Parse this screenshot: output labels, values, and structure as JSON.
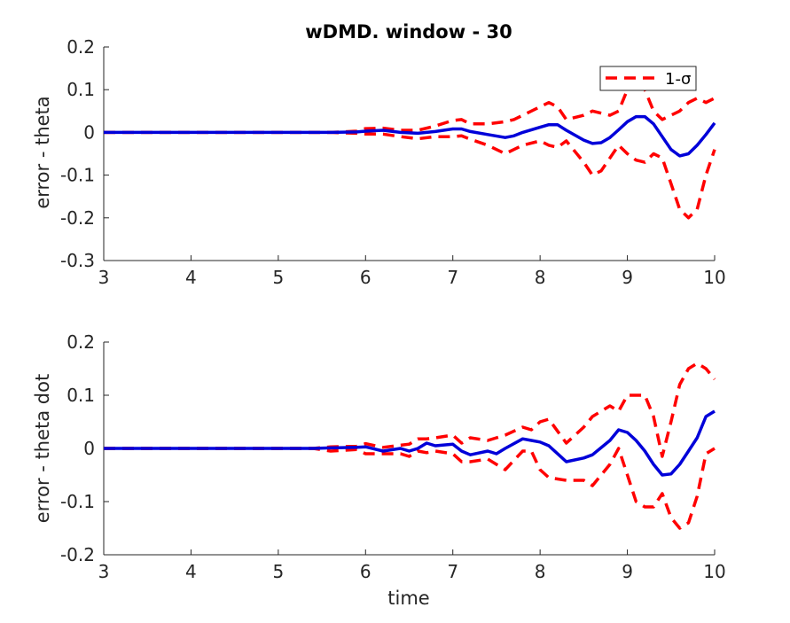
{
  "title": "wDMD. window - 30",
  "legend": {
    "label": "1-σ",
    "position": "top-right"
  },
  "colors": {
    "mean": "#0000d9",
    "sigma": "#ff0000",
    "axis": "#262626"
  },
  "chart_data": [
    {
      "type": "line",
      "title": "wDMD. window - 30",
      "xlabel": "",
      "ylabel": "error - theta",
      "xlim": [
        3,
        10
      ],
      "ylim": [
        -0.3,
        0.2
      ],
      "xticks": [
        3,
        4,
        5,
        6,
        7,
        8,
        9,
        10
      ],
      "yticks": [
        -0.3,
        -0.2,
        -0.1,
        0,
        0.1,
        0.2
      ],
      "ytick_labels": [
        "-0.3",
        "-0.2",
        "-0.1",
        "0",
        "0.1",
        "0.2"
      ],
      "grid": false,
      "legend": "top-right",
      "x": [
        3.0,
        4.0,
        5.0,
        5.4,
        5.6,
        5.9,
        6.0,
        6.2,
        6.4,
        6.6,
        6.8,
        7.0,
        7.1,
        7.2,
        7.4,
        7.6,
        7.7,
        7.8,
        8.0,
        8.1,
        8.2,
        8.3,
        8.5,
        8.6,
        8.7,
        8.8,
        8.9,
        9.0,
        9.1,
        9.2,
        9.3,
        9.4,
        9.5,
        9.6,
        9.7,
        9.8,
        9.9,
        10.0
      ],
      "series": [
        {
          "values": [
            0,
            0,
            0,
            0,
            0,
            0.001,
            0.003,
            0.005,
            0,
            -0.002,
            0.002,
            0.008,
            0.008,
            0.002,
            -0.005,
            -0.012,
            -0.008,
            0,
            0.012,
            0.018,
            0.018,
            0.005,
            -0.018,
            -0.026,
            -0.024,
            -0.012,
            0.006,
            0.025,
            0.037,
            0.037,
            0.02,
            -0.01,
            -0.04,
            -0.055,
            -0.05,
            -0.03,
            -0.005,
            0.022
          ]
        },
        {
          "values": [
            0,
            0,
            0,
            0,
            0,
            0.003,
            0.009,
            0.01,
            0.005,
            0.005,
            0.015,
            0.028,
            0.03,
            0.02,
            0.02,
            0.025,
            0.03,
            0.04,
            0.06,
            0.07,
            0.06,
            0.03,
            0.04,
            0.05,
            0.045,
            0.04,
            0.05,
            0.1,
            0.13,
            0.1,
            0.05,
            0.03,
            0.04,
            0.05,
            0.07,
            0.08,
            0.07,
            0.08
          ]
        },
        {
          "values": [
            0,
            0,
            0,
            0,
            0,
            -0.002,
            -0.004,
            -0.004,
            -0.01,
            -0.015,
            -0.01,
            -0.01,
            -0.008,
            -0.016,
            -0.03,
            -0.05,
            -0.04,
            -0.03,
            -0.02,
            -0.03,
            -0.035,
            -0.02,
            -0.07,
            -0.1,
            -0.09,
            -0.06,
            -0.03,
            -0.05,
            -0.065,
            -0.07,
            -0.05,
            -0.06,
            -0.12,
            -0.18,
            -0.2,
            -0.18,
            -0.1,
            -0.04
          ]
        }
      ]
    },
    {
      "type": "line",
      "title": "",
      "xlabel": "time",
      "ylabel": "error - theta dot",
      "xlim": [
        3,
        10
      ],
      "ylim": [
        -0.2,
        0.2
      ],
      "xticks": [
        3,
        4,
        5,
        6,
        7,
        8,
        9,
        10
      ],
      "yticks": [
        -0.2,
        -0.1,
        0,
        0.1,
        0.2
      ],
      "ytick_labels": [
        "-0.2",
        "-0.1",
        "0",
        "0.1",
        "0.2"
      ],
      "grid": false,
      "x": [
        3.0,
        4.0,
        5.0,
        5.4,
        5.6,
        5.9,
        6.0,
        6.2,
        6.4,
        6.5,
        6.6,
        6.7,
        6.8,
        7.0,
        7.1,
        7.2,
        7.4,
        7.5,
        7.6,
        7.8,
        7.9,
        8.0,
        8.1,
        8.3,
        8.5,
        8.6,
        8.8,
        8.9,
        9.0,
        9.1,
        9.2,
        9.3,
        9.4,
        9.5,
        9.6,
        9.7,
        9.8,
        9.9,
        10.0
      ],
      "series": [
        {
          "values": [
            0,
            0,
            0,
            0,
            0.001,
            0.002,
            0.003,
            -0.005,
            0,
            -0.005,
            0,
            0.01,
            0.005,
            0.008,
            -0.005,
            -0.012,
            -0.005,
            -0.01,
            0,
            0.018,
            0.015,
            0.012,
            0.005,
            -0.025,
            -0.018,
            -0.012,
            0.015,
            0.035,
            0.03,
            0.015,
            -0.005,
            -0.03,
            -0.05,
            -0.048,
            -0.03,
            -0.005,
            0.02,
            0.06,
            0.07
          ]
        },
        {
          "values": [
            0,
            0,
            0,
            0,
            0.003,
            0.004,
            0.009,
            0.002,
            0.006,
            0.008,
            0.018,
            0.018,
            0.02,
            0.025,
            0.01,
            0.02,
            0.015,
            0.02,
            0.025,
            0.04,
            0.035,
            0.05,
            0.055,
            0.01,
            0.04,
            0.06,
            0.08,
            0.07,
            0.1,
            0.1,
            0.1,
            0.06,
            -0.015,
            0.05,
            0.12,
            0.15,
            0.16,
            0.15,
            0.13
          ]
        },
        {
          "values": [
            0,
            0,
            0,
            0,
            -0.005,
            -0.002,
            -0.01,
            -0.01,
            -0.01,
            -0.015,
            -0.005,
            -0.008,
            -0.005,
            -0.01,
            -0.025,
            -0.025,
            -0.02,
            -0.03,
            -0.04,
            -0.005,
            -0.005,
            -0.04,
            -0.055,
            -0.06,
            -0.06,
            -0.07,
            -0.03,
            0,
            -0.05,
            -0.1,
            -0.11,
            -0.11,
            -0.085,
            -0.13,
            -0.15,
            -0.14,
            -0.09,
            -0.01,
            0
          ]
        }
      ]
    }
  ]
}
